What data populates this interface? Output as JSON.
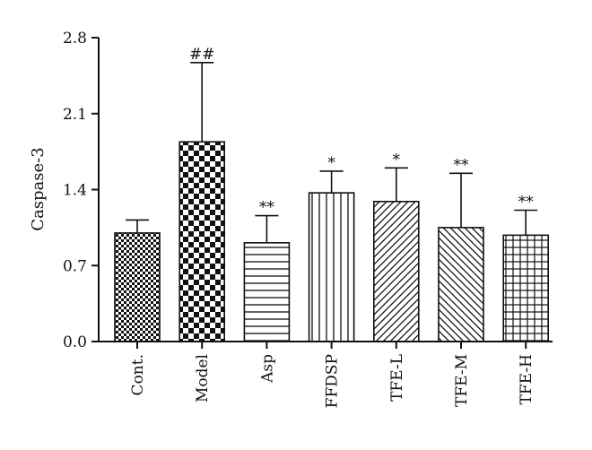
{
  "chart_data": {
    "type": "bar",
    "title": "",
    "xlabel": "",
    "ylabel": "Caspase-3",
    "ylim": [
      0,
      2.8
    ],
    "yticks": [
      "0.0",
      "0.7",
      "1.4",
      "2.1",
      "2.8"
    ],
    "categories": [
      "Cont.",
      "Model",
      "Asp",
      "FFDSP",
      "TFE-L",
      "TFE-M",
      "TFE-H"
    ],
    "values": [
      1.0,
      1.84,
      0.91,
      1.37,
      1.29,
      1.05,
      0.98
    ],
    "error_upper": [
      1.12,
      2.57,
      1.16,
      1.57,
      1.6,
      1.55,
      1.21
    ],
    "annotations": [
      "",
      "##",
      "**",
      "*",
      "*",
      "**",
      "**"
    ],
    "patterns": [
      "checker-fine",
      "checker-large",
      "horizontal-lines",
      "vertical-lines",
      "diagonal-up",
      "diagonal-down",
      "grid"
    ],
    "grid": false,
    "legend": "none"
  }
}
